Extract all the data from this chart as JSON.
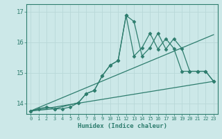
{
  "xlabel": "Humidex (Indice chaleur)",
  "bg_color": "#cce8e8",
  "line_color": "#2e7d6e",
  "grid_color": "#b8d8d8",
  "xlim": [
    -0.5,
    23.5
  ],
  "ylim": [
    13.65,
    17.25
  ],
  "yticks": [
    14,
    15,
    16,
    17
  ],
  "xticks": [
    0,
    1,
    2,
    3,
    4,
    5,
    6,
    7,
    8,
    9,
    10,
    11,
    12,
    13,
    14,
    15,
    16,
    17,
    18,
    19,
    20,
    21,
    22,
    23
  ],
  "series_jagged_x": [
    0,
    1,
    2,
    3,
    4,
    5,
    6,
    7,
    8,
    9,
    10,
    11,
    12,
    13,
    14,
    15,
    16,
    17,
    18,
    19,
    20,
    21,
    22,
    23
  ],
  "series_jagged_y": [
    13.75,
    13.82,
    13.88,
    13.82,
    13.82,
    13.88,
    14.02,
    14.32,
    14.42,
    14.9,
    15.25,
    15.4,
    16.88,
    16.68,
    15.55,
    15.82,
    16.3,
    15.78,
    16.12,
    15.8,
    15.05,
    15.05,
    15.05,
    14.72
  ],
  "series_smooth_x": [
    0,
    3,
    6,
    7,
    8,
    9,
    10,
    11,
    12,
    13,
    14,
    15,
    16,
    17,
    18,
    19,
    20,
    21,
    22,
    23
  ],
  "series_smooth_y": [
    13.75,
    13.82,
    14.02,
    14.32,
    14.42,
    14.9,
    15.25,
    15.4,
    16.88,
    15.55,
    15.82,
    16.3,
    15.78,
    16.12,
    15.8,
    15.05,
    15.05,
    15.05,
    15.05,
    14.72
  ],
  "series_line1_x": [
    0,
    23
  ],
  "series_line1_y": [
    13.75,
    16.25
  ],
  "series_line2_x": [
    0,
    23
  ],
  "series_line2_y": [
    13.75,
    14.72
  ]
}
